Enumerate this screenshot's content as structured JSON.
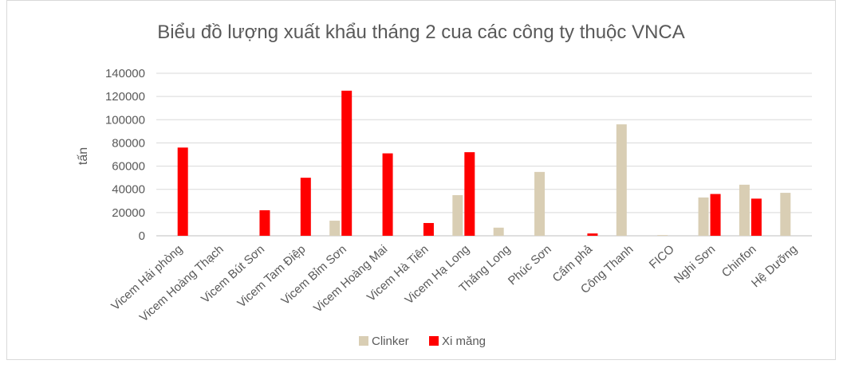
{
  "chart_data": {
    "type": "bar",
    "title": "Biểu đồ lượng xuất khẩu tháng 2 cua các công ty thuộc VNCA",
    "xlabel": "",
    "ylabel": "tấn",
    "ylim": [
      0,
      140000
    ],
    "yticks": [
      "0",
      "20000",
      "40000",
      "60000",
      "80000",
      "100000",
      "120000",
      "140000"
    ],
    "grid": true,
    "legend_position": "bottom",
    "categories": [
      "Vicem Hải phòng",
      "Vicem Hoàng Thạch",
      "Vicem Bút Sơn",
      "Vicem Tam Điệp",
      "Vicem Bỉm Sơn",
      "Vicem Hoàng Mai",
      "Vicem Hà Tiên",
      "Vicem Hạ Long",
      "Thăng Long",
      "Phúc Sơn",
      "Cẩm phả",
      "Công Thanh",
      "FICO",
      "Nghi Sơn",
      "Chinfon",
      "Hệ Dưỡng"
    ],
    "series": [
      {
        "name": "Clinker",
        "color": "#d9ceb4",
        "values": [
          0,
          0,
          0,
          0,
          13000,
          0,
          0,
          35000,
          7000,
          55000,
          0,
          96000,
          600,
          33000,
          44000,
          37000
        ]
      },
      {
        "name": "Xi măng",
        "color": "#ff0000",
        "values": [
          76000,
          0,
          22000,
          50000,
          125000,
          71000,
          11000,
          72000,
          0,
          0,
          2000,
          0,
          0,
          36000,
          32000,
          0
        ]
      }
    ]
  }
}
